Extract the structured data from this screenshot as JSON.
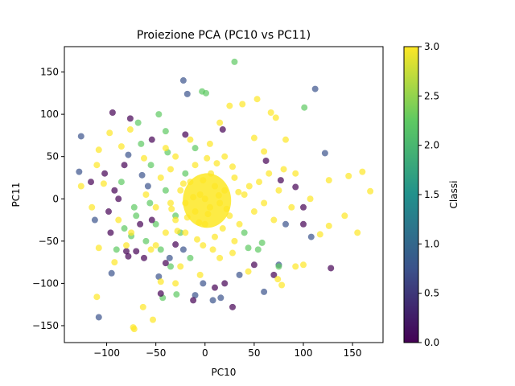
{
  "chart_data": {
    "type": "scatter",
    "title": "Proiezione PCA (PC10 vs PC11)",
    "xlabel": "PC10",
    "ylabel": "PC11",
    "xlim": [
      -143,
      181
    ],
    "ylim": [
      -170,
      180
    ],
    "xticks": [
      -100,
      -50,
      0,
      50,
      100,
      150
    ],
    "yticks": [
      -150,
      -100,
      -50,
      0,
      50,
      100,
      150
    ],
    "colorbar": {
      "label": "Classi",
      "range": [
        0.0,
        3.0
      ],
      "ticks": [
        "0.0",
        "0.5",
        "1.0",
        "1.5",
        "2.0",
        "2.5",
        "3.0"
      ],
      "colormap": "viridis",
      "colors": [
        "#440154",
        "#3b528b",
        "#21918c",
        "#5ec962",
        "#fde725"
      ]
    },
    "marker_alpha": 0.7,
    "series": [
      {
        "class_value": 1,
        "points": [
          [
            -22,
            140
          ],
          [
            -126,
            74
          ],
          [
            112,
            130
          ],
          [
            -18,
            124
          ],
          [
            122,
            54
          ],
          [
            -108,
            -140
          ],
          [
            -128,
            32
          ],
          [
            -112,
            -25
          ],
          [
            -95,
            -88
          ],
          [
            -47,
            -92
          ],
          [
            -2,
            -100
          ],
          [
            8,
            -120
          ],
          [
            16,
            -117
          ],
          [
            -10,
            -114
          ],
          [
            -58,
            15
          ],
          [
            -36,
            -70
          ],
          [
            60,
            -110
          ],
          [
            108,
            -45
          ],
          [
            75,
            -78
          ],
          [
            -22,
            -60
          ],
          [
            35,
            -90
          ],
          [
            -78,
            52
          ],
          [
            -64,
            28
          ],
          [
            82,
            -30
          ]
        ]
      },
      {
        "class_value": 2,
        "points": [
          [
            30,
            162
          ],
          [
            -3,
            127
          ],
          [
            1,
            125
          ],
          [
            -68,
            90
          ],
          [
            54,
            -60
          ],
          [
            -29,
            -113
          ],
          [
            -43,
            -117
          ],
          [
            101,
            108
          ],
          [
            -50,
            -30
          ],
          [
            -72,
            -10
          ],
          [
            -82,
            -35
          ],
          [
            -55,
            40
          ],
          [
            -30,
            -20
          ],
          [
            -40,
            10
          ],
          [
            -20,
            30
          ],
          [
            -60,
            -50
          ],
          [
            -45,
            -60
          ],
          [
            -85,
            20
          ],
          [
            -40,
            80
          ],
          [
            -10,
            60
          ],
          [
            -25,
            -40
          ],
          [
            40,
            -40
          ],
          [
            -35,
            -80
          ],
          [
            -15,
            -70
          ],
          [
            -65,
            65
          ],
          [
            -47,
            100
          ],
          [
            -56,
            -5
          ],
          [
            58,
            -52
          ],
          [
            44,
            -58
          ],
          [
            75,
            -80
          ],
          [
            -70,
            -20
          ],
          [
            -38,
            55
          ],
          [
            -75,
            -44
          ],
          [
            -90,
            -60
          ]
        ]
      },
      {
        "class_value": 0,
        "points": [
          [
            -80,
            -62
          ],
          [
            -78,
            -68
          ],
          [
            -98,
            -15
          ],
          [
            -102,
            30
          ],
          [
            -116,
            20
          ],
          [
            -92,
            10
          ],
          [
            -96,
            -40
          ],
          [
            -88,
            0
          ],
          [
            -70,
            -62
          ],
          [
            -62,
            -70
          ],
          [
            28,
            -128
          ],
          [
            10,
            -105
          ],
          [
            20,
            -100
          ],
          [
            50,
            -78
          ],
          [
            70,
            -90
          ],
          [
            -94,
            102
          ],
          [
            -76,
            95
          ],
          [
            -54,
            70
          ],
          [
            -40,
            -76
          ],
          [
            -30,
            -54
          ],
          [
            62,
            45
          ],
          [
            77,
            22
          ],
          [
            92,
            14
          ],
          [
            100,
            -10
          ],
          [
            128,
            -82
          ],
          [
            100,
            -30
          ],
          [
            -12,
            -120
          ],
          [
            -45,
            -112
          ],
          [
            -20,
            76
          ],
          [
            18,
            82
          ],
          [
            -66,
            -30
          ],
          [
            -82,
            40
          ],
          [
            -54,
            -25
          ]
        ]
      },
      {
        "class_value": 3,
        "points": [
          [
            -72,
            -154
          ],
          [
            -73,
            -152
          ],
          [
            -53,
            -143
          ],
          [
            -63,
            -128
          ],
          [
            -110,
            -116
          ],
          [
            -108,
            -58
          ],
          [
            -115,
            -10
          ],
          [
            -108,
            58
          ],
          [
            -110,
            40
          ],
          [
            -103,
            18
          ],
          [
            -126,
            15
          ],
          [
            -92,
            -75
          ],
          [
            -97,
            78
          ],
          [
            -88,
            -25
          ],
          [
            -80,
            -55
          ],
          [
            -75,
            -40
          ],
          [
            -60,
            5
          ],
          [
            -50,
            -10
          ],
          [
            -45,
            25
          ],
          [
            -40,
            -40
          ],
          [
            -35,
            35
          ],
          [
            -30,
            -25
          ],
          [
            -25,
            10
          ],
          [
            -20,
            -5
          ],
          [
            -15,
            20
          ],
          [
            -10,
            -15
          ],
          [
            -5,
            5
          ],
          [
            0,
            0
          ],
          [
            5,
            -10
          ],
          [
            10,
            15
          ],
          [
            15,
            -5
          ],
          [
            20,
            10
          ],
          [
            25,
            -20
          ],
          [
            30,
            25
          ],
          [
            35,
            -30
          ],
          [
            40,
            5
          ],
          [
            45,
            15
          ],
          [
            50,
            -15
          ],
          [
            55,
            20
          ],
          [
            60,
            -5
          ],
          [
            65,
            30
          ],
          [
            70,
            -25
          ],
          [
            75,
            10
          ],
          [
            80,
            35
          ],
          [
            -20,
            -40
          ],
          [
            -10,
            40
          ],
          [
            0,
            -30
          ],
          [
            10,
            -45
          ],
          [
            20,
            50
          ],
          [
            30,
            -50
          ],
          [
            -30,
            50
          ],
          [
            -40,
            60
          ],
          [
            -50,
            -55
          ],
          [
            15,
            90
          ],
          [
            25,
            110
          ],
          [
            38,
            112
          ],
          [
            53,
            118
          ],
          [
            67,
            102
          ],
          [
            72,
            96
          ],
          [
            82,
            70
          ],
          [
            74,
            -95
          ],
          [
            78,
            -102
          ],
          [
            92,
            -80
          ],
          [
            100,
            -78
          ],
          [
            117,
            -42
          ],
          [
            126,
            -32
          ],
          [
            107,
            0
          ],
          [
            126,
            22
          ],
          [
            160,
            32
          ],
          [
            146,
            27
          ],
          [
            168,
            9
          ],
          [
            155,
            -40
          ],
          [
            142,
            -20
          ],
          [
            -5,
            -90
          ],
          [
            15,
            -70
          ],
          [
            -25,
            -80
          ],
          [
            5,
            65
          ],
          [
            -15,
            70
          ],
          [
            -35,
            -5
          ],
          [
            -55,
            -60
          ],
          [
            -62,
            48
          ],
          [
            -76,
            82
          ],
          [
            -85,
            62
          ],
          [
            -45,
            -98
          ],
          [
            -30,
            -100
          ],
          [
            8,
            -60
          ],
          [
            28,
            -64
          ],
          [
            44,
            -86
          ],
          [
            12,
            42
          ],
          [
            -8,
            -48
          ],
          [
            60,
            56
          ],
          [
            92,
            30
          ],
          [
            88,
            -10
          ],
          [
            50,
            72
          ],
          [
            -2,
            22
          ],
          [
            3,
            -18
          ],
          [
            -12,
            2
          ],
          [
            14,
            4
          ],
          [
            6,
            30
          ],
          [
            -6,
            -28
          ],
          [
            22,
            -12
          ],
          [
            -22,
            18
          ],
          [
            18,
            -35
          ],
          [
            -18,
            -22
          ],
          [
            2,
            48
          ],
          [
            -2,
            -55
          ],
          [
            34,
            8
          ],
          [
            -34,
            -12
          ],
          [
            28,
            38
          ],
          [
            -28,
            -38
          ]
        ]
      }
    ]
  }
}
